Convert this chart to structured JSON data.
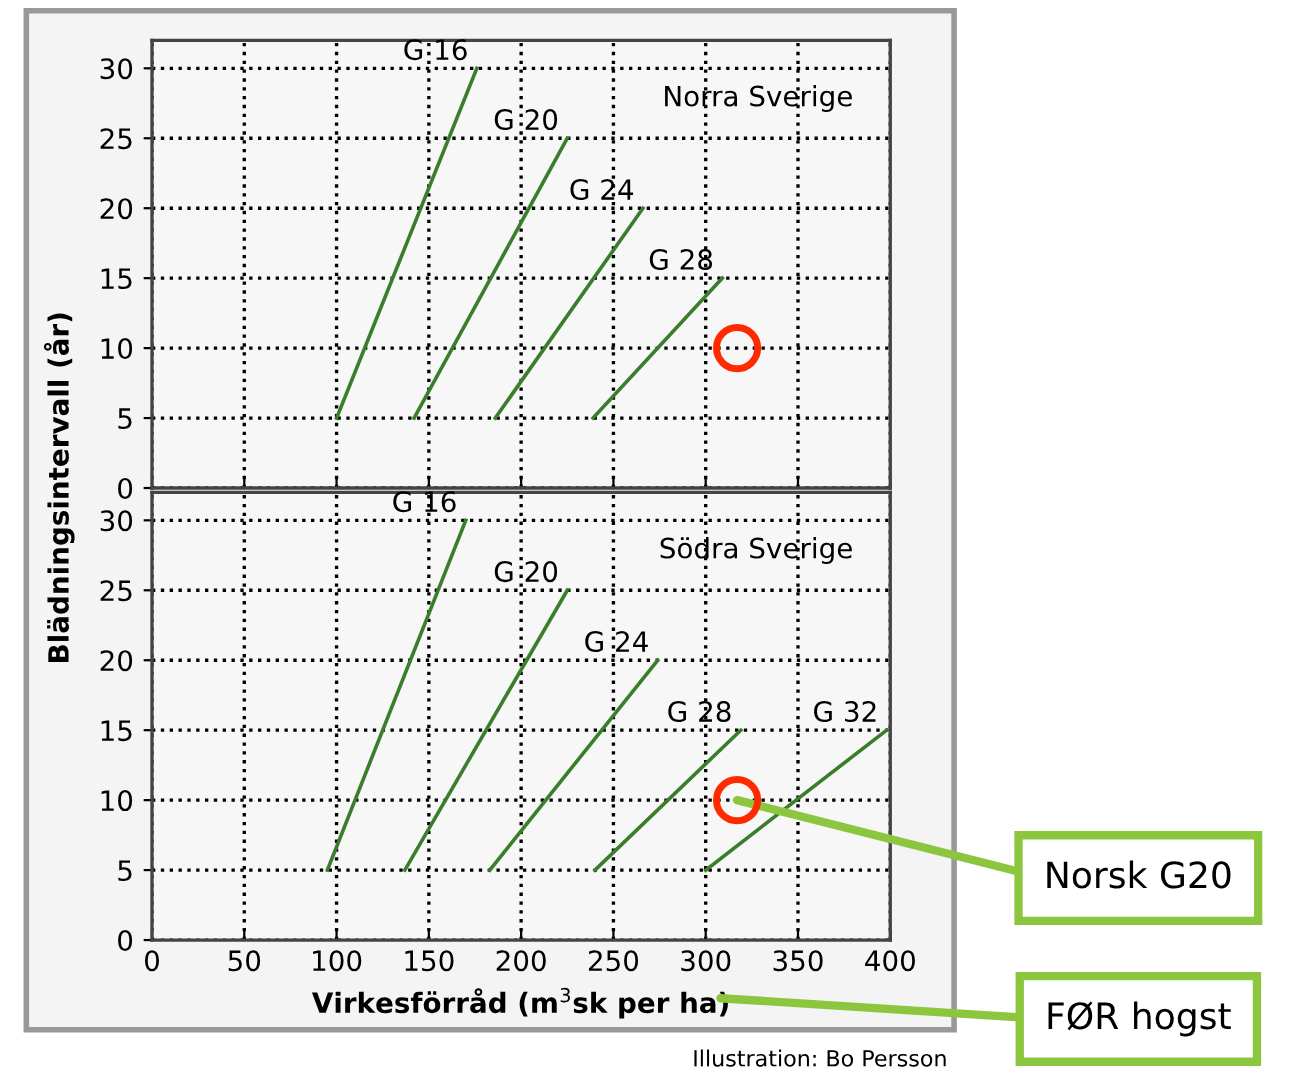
{
  "chart_data": [
    {
      "type": "line",
      "title": "Norra Sverige",
      "ylabel": "Blädningsintervall (år)",
      "xlim": [
        0,
        400
      ],
      "xticks": [
        0,
        50,
        100,
        150,
        200,
        250,
        300,
        350,
        400
      ],
      "ylim": [
        0,
        32
      ],
      "yticks": [
        0,
        5,
        10,
        15,
        20,
        25,
        30
      ],
      "tick_labels": "y",
      "grid": true,
      "legend": false,
      "series": [
        {
          "name": "G 16",
          "color": "#3a7d2c",
          "x": [
            100,
            176
          ],
          "values": [
            5,
            30
          ]
        },
        {
          "name": "G 20",
          "color": "#3a7d2c",
          "x": [
            142,
            225
          ],
          "values": [
            5,
            25
          ]
        },
        {
          "name": "G 24",
          "color": "#3a7d2c",
          "x": [
            186,
            266
          ],
          "values": [
            5,
            20
          ]
        },
        {
          "name": "G 28",
          "color": "#3a7d2c",
          "x": [
            239,
            309
          ],
          "values": [
            5,
            15
          ]
        },
        {
          "type": "scatter",
          "marker": "circle",
          "color": "#ff2a00",
          "x": [
            317
          ],
          "values": [
            10
          ]
        }
      ]
    },
    {
      "type": "line",
      "title": "Södra Sverige",
      "xlabel": "Virkesförråd (m$^{3}$sk per ha)",
      "xlim": [
        0,
        400
      ],
      "xticks": [
        0,
        50,
        100,
        150,
        200,
        250,
        300,
        350,
        400
      ],
      "ylim": [
        0,
        32
      ],
      "yticks": [
        0,
        5,
        10,
        15,
        20,
        25,
        30
      ],
      "grid": true,
      "legend": false,
      "series": [
        {
          "name": "G 16",
          "color": "#3a7d2c",
          "x": [
            95,
            170
          ],
          "values": [
            5,
            30
          ]
        },
        {
          "name": "G 20",
          "color": "#3a7d2c",
          "x": [
            137,
            225
          ],
          "values": [
            5,
            25
          ]
        },
        {
          "name": "G 24",
          "color": "#3a7d2c",
          "x": [
            183,
            274
          ],
          "values": [
            5,
            20
          ]
        },
        {
          "name": "G 28",
          "color": "#3a7d2c",
          "x": [
            240,
            319
          ],
          "values": [
            5,
            15
          ]
        },
        {
          "name": "G 32",
          "color": "#3a7d2c",
          "x": [
            300,
            398
          ],
          "values": [
            5,
            15
          ]
        },
        {
          "type": "scatter",
          "marker": "circle",
          "color": "#ff2a00",
          "x": [
            317
          ],
          "values": [
            10
          ]
        }
      ],
      "annotations": [
        {
          "text": "Norsk G20",
          "x": 317,
          "y": 10
        },
        "FØR hogst",
        "Illustration: Bo Persson"
      ]
    }
  ]
}
